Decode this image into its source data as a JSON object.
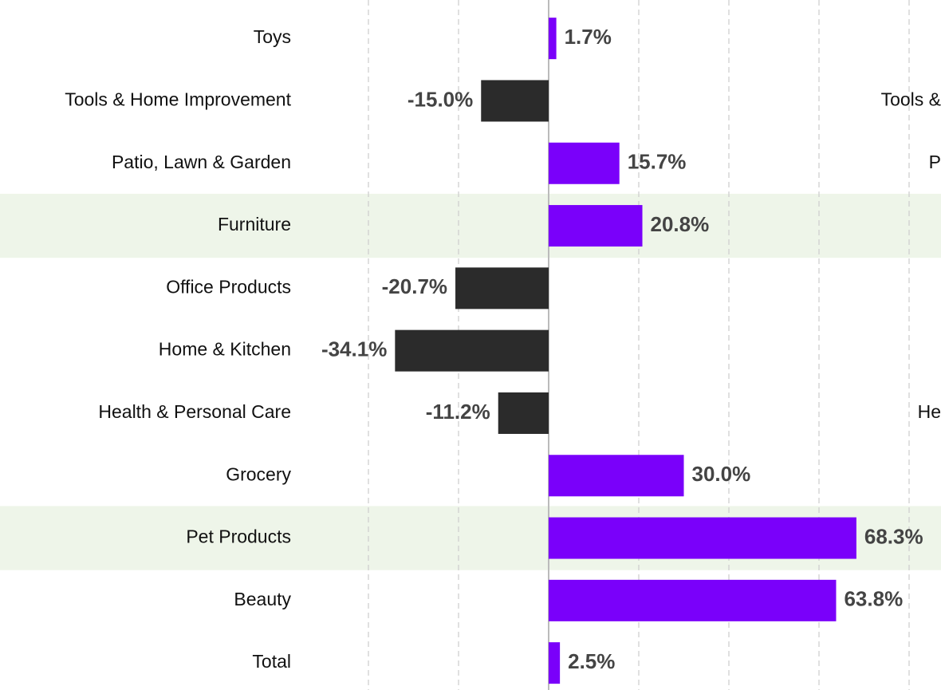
{
  "chart_data": {
    "type": "barh",
    "categories": [
      "Toys",
      "Tools & Home Improvement",
      "Patio, Lawn & Garden",
      "Furniture",
      "Office Products",
      "Home & Kitchen",
      "Health & Personal Care",
      "Grocery",
      "Pet Products",
      "Beauty",
      "Total"
    ],
    "values": [
      1.7,
      -15.0,
      15.7,
      20.8,
      -20.7,
      -34.1,
      -11.2,
      30.0,
      68.3,
      63.8,
      2.5
    ],
    "value_labels": [
      "1.7%",
      "-15.0%",
      "15.7%",
      "20.8%",
      "-20.7%",
      "-34.1%",
      "-11.2%",
      "30.0%",
      "68.3%",
      "63.8%",
      "2.5%"
    ],
    "positive_color": "#7a00fa",
    "negative_color": "#2b2b2b",
    "highlight_color": "#eef5e9",
    "highlight_rows": [
      3,
      8
    ],
    "right_labels": [
      null,
      "Tools &",
      "P",
      null,
      null,
      null,
      "He",
      null,
      null,
      null,
      null
    ],
    "xlim": [
      -40,
      80
    ],
    "xticks": [
      -40,
      -20,
      0,
      20,
      40,
      60,
      80
    ],
    "grid": true
  }
}
